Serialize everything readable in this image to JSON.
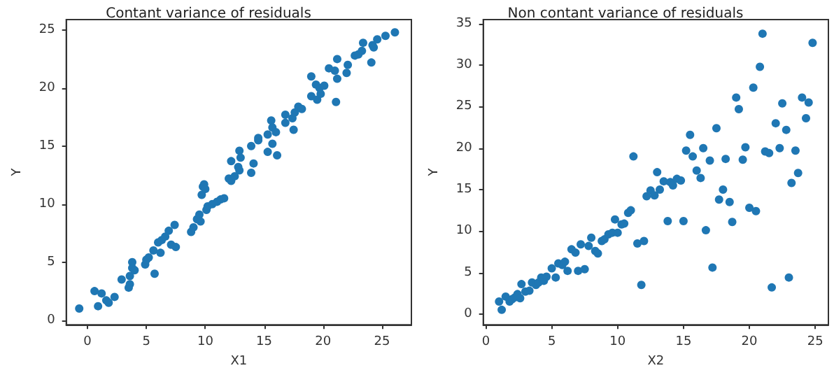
{
  "chart_data": [
    {
      "type": "scatter",
      "title": "Contant variance of residuals",
      "xlabel": "X1",
      "ylabel": "Y",
      "xlim": [
        -1.8,
        27.5
      ],
      "ylim": [
        -0.4,
        25.9
      ],
      "xticks": [
        0,
        5,
        10,
        15,
        20,
        25
      ],
      "yticks": [
        0,
        5,
        10,
        15,
        20,
        25
      ],
      "marker": "circle",
      "series": [
        {
          "color": "#1f77b4",
          "x": [
            -0.7,
            0.6,
            0.9,
            1.2,
            1.6,
            1.8,
            2.3,
            2.9,
            3.5,
            3.6,
            3.6,
            3.8,
            3.8,
            4.0,
            4.9,
            5.0,
            5.2,
            5.6,
            5.7,
            6.0,
            6.2,
            6.3,
            6.6,
            6.9,
            7.1,
            7.4,
            7.5,
            8.8,
            9.0,
            9.3,
            9.5,
            9.6,
            9.7,
            9.8,
            9.9,
            10.0,
            10.1,
            10.2,
            10.6,
            11.0,
            11.3,
            11.6,
            12.0,
            12.2,
            12.2,
            12.5,
            12.8,
            12.9,
            12.9,
            13.0,
            13.9,
            13.9,
            14.1,
            14.5,
            14.5,
            15.3,
            15.3,
            15.6,
            15.7,
            15.7,
            16.0,
            16.1,
            16.8,
            16.8,
            17.4,
            17.5,
            17.6,
            17.9,
            18.2,
            19.0,
            19.0,
            19.4,
            19.5,
            19.7,
            19.8,
            20.1,
            20.5,
            21.0,
            21.1,
            21.2,
            21.2,
            22.0,
            22.1,
            22.7,
            23.0,
            23.3,
            23.4,
            24.1,
            24.2,
            24.3,
            24.6,
            25.3,
            26.1
          ],
          "values": [
            1.0,
            2.5,
            1.2,
            2.3,
            1.7,
            1.5,
            2.0,
            3.5,
            2.8,
            3.1,
            3.8,
            5.0,
            4.5,
            4.3,
            4.8,
            5.2,
            5.4,
            6.0,
            4.0,
            6.7,
            5.8,
            6.9,
            7.2,
            7.7,
            6.5,
            8.2,
            6.3,
            7.6,
            8.0,
            8.7,
            9.1,
            8.5,
            10.8,
            11.5,
            11.7,
            11.3,
            9.5,
            9.8,
            10.0,
            10.2,
            10.4,
            10.5,
            12.2,
            12.0,
            13.7,
            12.4,
            13.2,
            12.9,
            14.6,
            14.0,
            15.0,
            12.7,
            13.5,
            15.5,
            15.7,
            16.0,
            14.5,
            17.2,
            16.6,
            15.2,
            16.2,
            14.2,
            17.7,
            17.0,
            17.4,
            16.4,
            17.9,
            18.4,
            18.2,
            21.0,
            19.3,
            20.3,
            19.0,
            20.0,
            19.5,
            20.2,
            21.7,
            21.5,
            18.8,
            22.5,
            20.8,
            21.3,
            22.0,
            22.8,
            22.9,
            23.2,
            23.9,
            22.2,
            23.7,
            23.5,
            24.2,
            24.5,
            24.8
          ]
        }
      ]
    },
    {
      "type": "scatter",
      "title": "Non contant variance of residuals",
      "xlabel": "X2",
      "ylabel": "Y",
      "xlim": [
        -0.2,
        26
      ],
      "ylim": [
        -1.3,
        35.5
      ],
      "xticks": [
        0,
        5,
        10,
        15,
        20,
        25
      ],
      "yticks": [
        0,
        5,
        10,
        15,
        20,
        25,
        30,
        35
      ],
      "marker": "circle",
      "series": [
        {
          "color": "#1f77b4",
          "x": [
            1.0,
            1.2,
            1.5,
            1.8,
            2.0,
            2.2,
            2.4,
            2.6,
            2.7,
            3.0,
            3.3,
            3.5,
            3.8,
            4.0,
            4.2,
            4.4,
            4.6,
            5.0,
            5.3,
            5.5,
            5.8,
            6.0,
            6.2,
            6.5,
            6.8,
            7.0,
            7.2,
            7.5,
            7.8,
            8.0,
            8.3,
            8.5,
            8.8,
            9.0,
            9.3,
            9.6,
            9.8,
            10.0,
            10.3,
            10.5,
            10.8,
            11.0,
            11.2,
            11.5,
            11.8,
            12.0,
            12.2,
            12.5,
            12.8,
            13.0,
            13.2,
            13.5,
            13.8,
            14.0,
            14.2,
            14.5,
            14.8,
            15.0,
            15.2,
            15.5,
            15.7,
            16.0,
            16.3,
            16.5,
            16.7,
            17.0,
            17.2,
            17.5,
            17.7,
            18.0,
            18.2,
            18.5,
            18.7,
            19.0,
            19.2,
            19.5,
            19.7,
            20.0,
            20.3,
            20.5,
            20.8,
            21.0,
            21.2,
            21.5,
            21.7,
            22.0,
            22.3,
            22.5,
            22.8,
            23.0,
            23.2,
            23.5,
            23.7,
            24.0,
            24.3,
            24.5,
            24.8
          ],
          "values": [
            1.5,
            0.5,
            2.1,
            1.5,
            1.8,
            2.0,
            2.4,
            1.9,
            3.6,
            2.7,
            2.8,
            3.8,
            3.5,
            3.8,
            4.4,
            4.0,
            4.5,
            5.5,
            4.4,
            6.1,
            5.9,
            6.3,
            5.2,
            7.8,
            7.4,
            5.2,
            8.4,
            5.4,
            8.2,
            9.2,
            7.6,
            7.3,
            8.8,
            9.0,
            9.6,
            9.8,
            11.4,
            9.8,
            10.8,
            10.9,
            12.2,
            12.5,
            19.0,
            8.5,
            3.5,
            8.8,
            14.2,
            14.9,
            14.3,
            17.1,
            15.0,
            16.0,
            11.2,
            15.9,
            15.5,
            16.3,
            16.1,
            11.2,
            19.7,
            21.6,
            19.0,
            17.3,
            16.4,
            20.0,
            10.1,
            18.5,
            5.6,
            22.4,
            13.8,
            15.0,
            18.7,
            13.5,
            11.1,
            26.1,
            24.7,
            18.6,
            20.1,
            12.8,
            27.3,
            12.4,
            29.8,
            33.8,
            19.6,
            19.4,
            3.2,
            23.0,
            20.0,
            25.4,
            22.2,
            4.4,
            15.8,
            19.7,
            17.0,
            26.1,
            23.6,
            25.5,
            32.7
          ]
        }
      ]
    }
  ]
}
